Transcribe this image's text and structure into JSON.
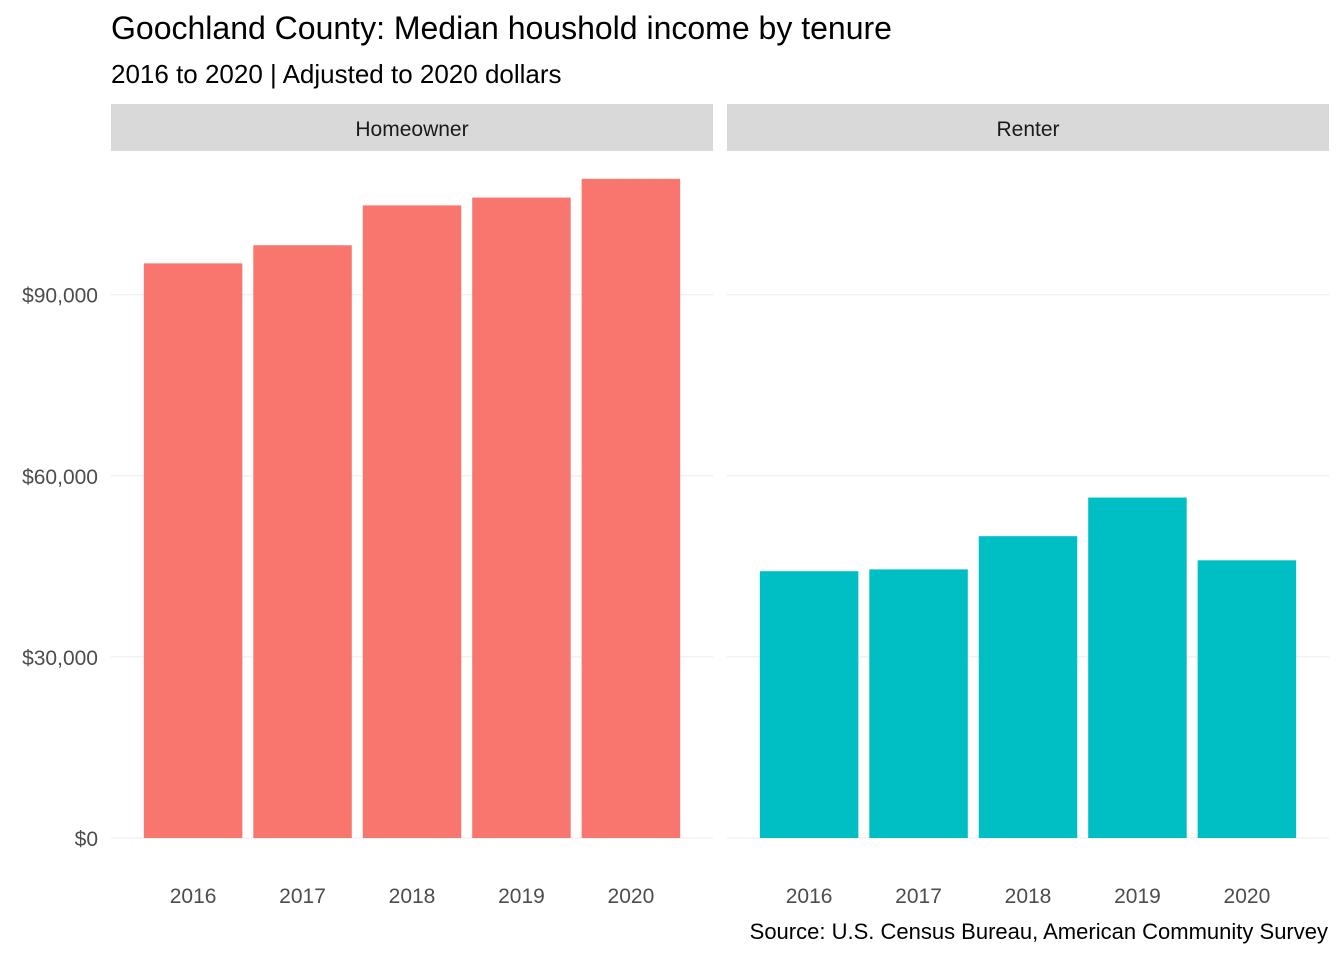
{
  "title": "Goochland County: Median houshold income by tenure",
  "subtitle": "2016 to 2020 | Adjusted to 2020 dollars",
  "caption": "Source: U.S. Census Bureau, American Community Survey",
  "chart_data": {
    "type": "bar",
    "facet_by": "tenure",
    "categories": [
      "2016",
      "2017",
      "2018",
      "2019",
      "2020"
    ],
    "ylim": [
      0,
      110000
    ],
    "yticks": [
      0,
      30000,
      60000,
      90000
    ],
    "ytick_labels": [
      "$0",
      "$30,000",
      "$60,000",
      "$90,000"
    ],
    "grid": true,
    "panels": [
      {
        "name": "Homeowner",
        "color": "#F8766D",
        "values": [
          95200,
          98200,
          104800,
          106100,
          109200
        ]
      },
      {
        "name": "Renter",
        "color": "#00BFC4",
        "values": [
          44200,
          44500,
          50000,
          56400,
          46000
        ]
      }
    ]
  }
}
